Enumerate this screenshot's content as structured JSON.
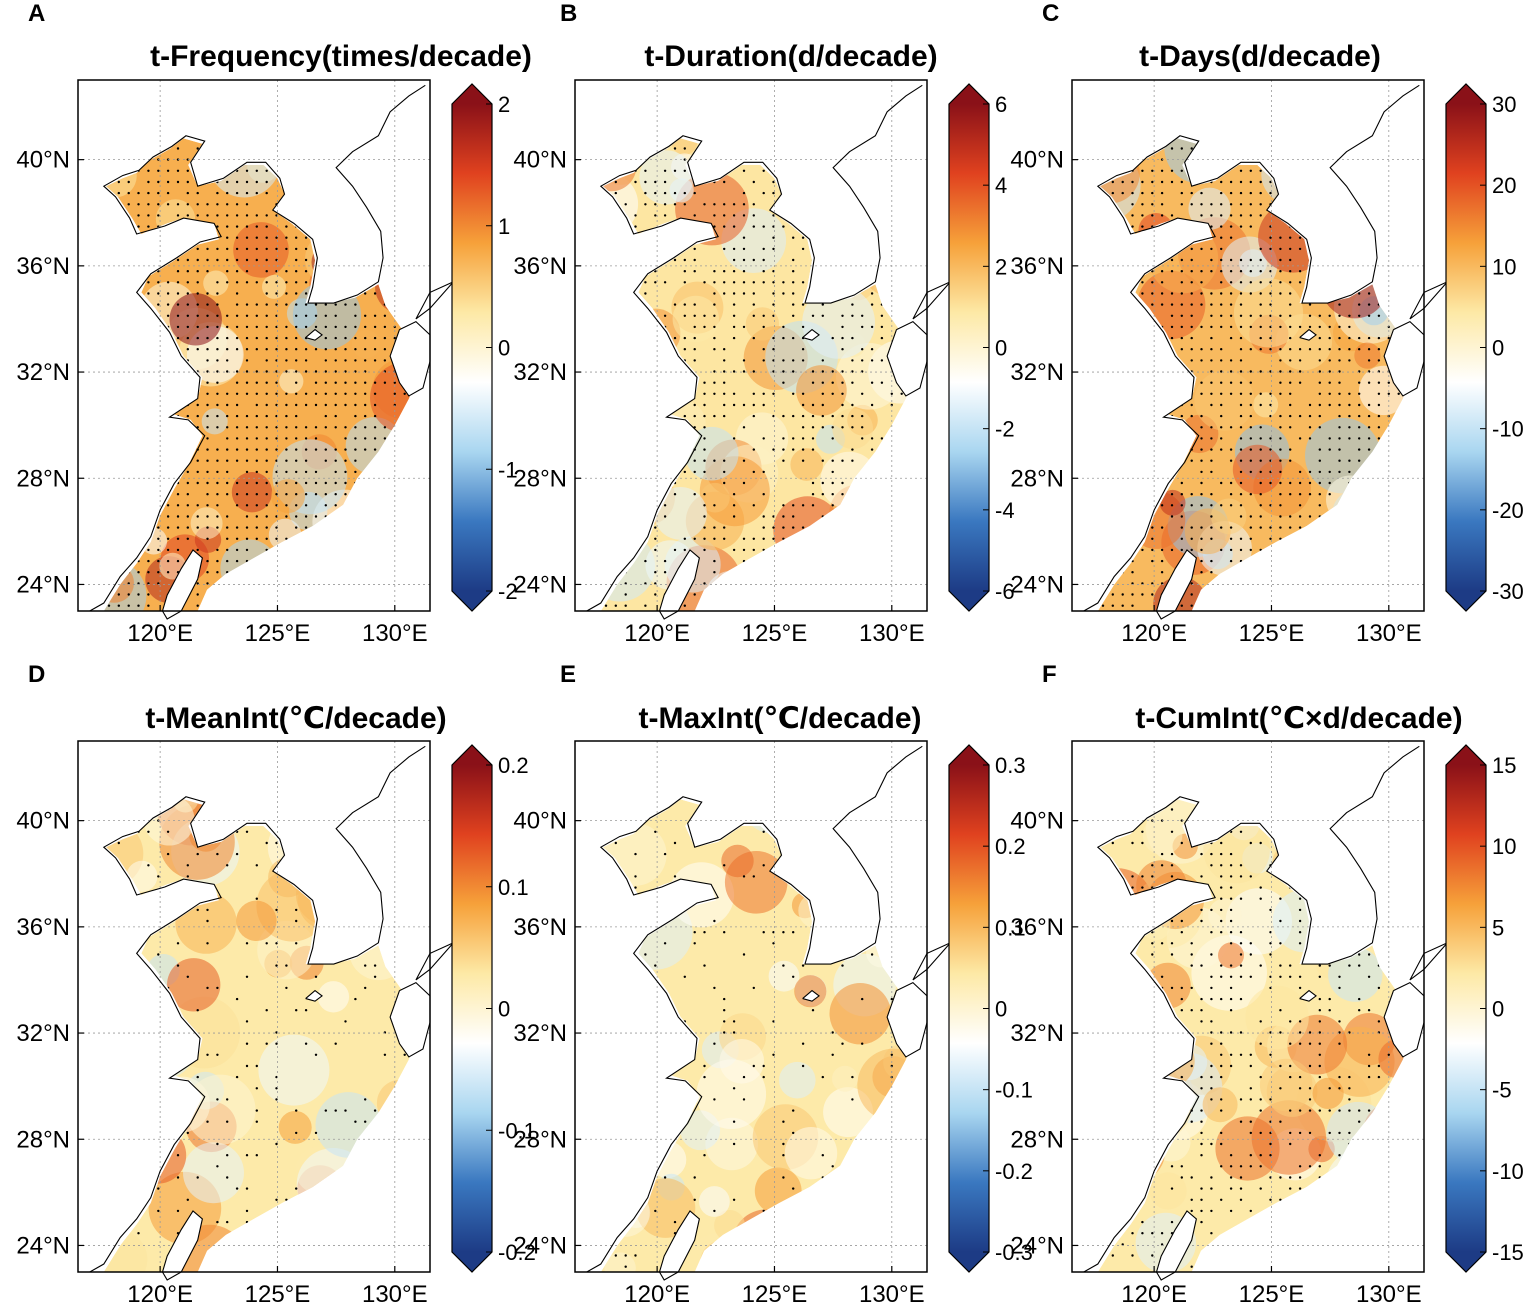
{
  "colorbar_colors": {
    "stops": [
      "#1d3b85",
      "#3a78c0",
      "#a9d6f0",
      "#ffffff",
      "#fde9a6",
      "#f6a13a",
      "#e0421f",
      "#8a1118"
    ],
    "land_stroke": "#000000",
    "grid": "#999999",
    "ocean_high": "#c9301c",
    "ocean_mid": "#f29a3d",
    "ocean_low": "#fbe3a8",
    "ocean_neg": "#9ecae9"
  },
  "axes": {
    "lat_labels": [
      "40°N",
      "36°N",
      "32°N",
      "28°N",
      "24°N"
    ],
    "lon_labels": [
      "120°E",
      "125°E",
      "130°E"
    ]
  },
  "panels": [
    {
      "letter": "A",
      "title": "t-Frequency(times/decade)",
      "colorbar_labels": [
        "2",
        "1",
        "0",
        "-1",
        "-2"
      ],
      "colorbar_range": [
        -2,
        2
      ],
      "level": 0.85,
      "stipple": 0.9
    },
    {
      "letter": "B",
      "title": "t-Duration(d/decade)",
      "colorbar_labels": [
        "6",
        "4",
        "2",
        "0",
        "-2",
        "-4",
        "-6"
      ],
      "colorbar_range": [
        -6,
        6
      ],
      "level": 0.35,
      "stipple": 0.55
    },
    {
      "letter": "C",
      "title": "t-Days(d/decade)",
      "colorbar_labels": [
        "30",
        "20",
        "10",
        "0",
        "-10",
        "-20",
        "-30"
      ],
      "colorbar_range": [
        -30,
        30
      ],
      "level": 0.75,
      "stipple": 0.8
    },
    {
      "letter": "D",
      "title": "t-MeanInt(℃/decade)",
      "colorbar_labels": [
        "0.2",
        "0.1",
        "0",
        "-0.1",
        "-0.2"
      ],
      "colorbar_range": [
        -0.2,
        0.2
      ],
      "level": 0.3,
      "stipple": 0.15
    },
    {
      "letter": "E",
      "title": "t-MaxInt(℃/decade)",
      "colorbar_labels": [
        "0.3",
        "0.2",
        "0.1",
        "0",
        "-0.1",
        "-0.2",
        "-0.3"
      ],
      "colorbar_range": [
        -0.3,
        0.3
      ],
      "level": 0.3,
      "stipple": 0.15
    },
    {
      "letter": "F",
      "title": "t-CumInt(℃×d/decade)",
      "colorbar_labels": [
        "15",
        "10",
        "5",
        "0",
        "-5",
        "-10",
        "-15"
      ],
      "colorbar_range": [
        -15,
        15
      ],
      "level": 0.3,
      "stipple": 0.45
    }
  ]
}
